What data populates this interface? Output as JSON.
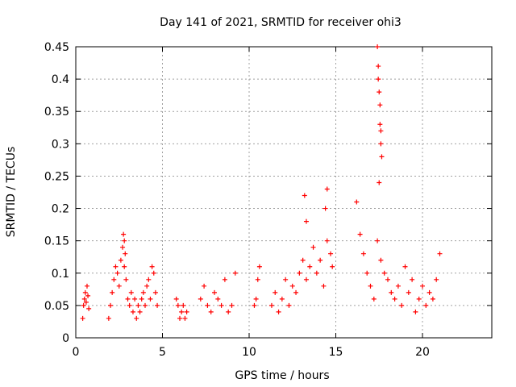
{
  "chart_data": {
    "type": "scatter",
    "title": "Day 141 of 2021, SRMTID for receiver ohi3",
    "xlabel": "GPS time / hours",
    "ylabel": "SRMTID / TECUs",
    "xlim": [
      0,
      24
    ],
    "ylim": [
      0,
      0.45
    ],
    "xticks": [
      0,
      5,
      10,
      15,
      20
    ],
    "yticks": [
      0,
      0.05,
      0.1,
      0.15,
      0.2,
      0.25,
      0.3,
      0.35,
      0.4,
      0.45
    ],
    "xtick_labels": [
      "0",
      "5",
      "10",
      "15",
      "20"
    ],
    "ytick_labels": [
      "0",
      "0.05",
      "0.1",
      "0.15",
      "0.2",
      "0.25",
      "0.3",
      "0.35",
      "0.4",
      "0.45"
    ],
    "grid": true,
    "marker": "+",
    "series_color": "#ff0000",
    "series": [
      {
        "name": "SRMTID",
        "x": [
          0.4,
          0.45,
          0.5,
          0.55,
          0.6,
          0.65,
          0.7,
          0.75,
          1.9,
          2.0,
          2.1,
          2.2,
          2.3,
          2.4,
          2.5,
          2.6,
          2.7,
          2.8,
          2.9,
          3.0,
          3.1,
          3.2,
          3.3,
          3.4,
          3.5,
          3.6,
          3.7,
          3.8,
          3.9,
          4.0,
          4.1,
          4.2,
          4.3,
          4.4,
          4.5,
          4.6,
          4.7,
          2.75,
          2.8,
          2.85,
          5.8,
          5.9,
          6.0,
          6.1,
          6.2,
          6.3,
          6.4,
          7.2,
          7.4,
          7.6,
          7.8,
          8.0,
          8.2,
          8.4,
          8.6,
          8.8,
          9.0,
          9.2,
          10.3,
          10.4,
          10.5,
          10.6,
          11.3,
          11.5,
          11.7,
          11.9,
          12.1,
          12.3,
          12.5,
          12.7,
          12.9,
          13.1,
          13.3,
          13.5,
          13.7,
          13.9,
          14.1,
          14.3,
          14.5,
          14.7,
          14.8,
          13.2,
          13.3,
          14.4,
          14.5,
          16.2,
          16.4,
          16.6,
          16.8,
          17.0,
          17.2,
          17.4,
          17.6,
          17.8,
          18.0,
          18.2,
          18.4,
          18.6,
          18.8,
          19.0,
          19.2,
          19.4,
          19.6,
          19.8,
          20.0,
          20.2,
          20.4,
          20.6,
          20.8,
          21.0,
          17.4,
          17.45,
          17.5,
          17.55,
          17.6,
          17.65,
          17.5,
          17.55,
          17.45,
          17.6
        ],
        "y": [
          0.03,
          0.05,
          0.06,
          0.07,
          0.055,
          0.08,
          0.065,
          0.045,
          0.03,
          0.05,
          0.07,
          0.09,
          0.11,
          0.1,
          0.08,
          0.12,
          0.14,
          0.11,
          0.09,
          0.06,
          0.05,
          0.07,
          0.04,
          0.06,
          0.03,
          0.05,
          0.04,
          0.06,
          0.07,
          0.05,
          0.08,
          0.09,
          0.06,
          0.11,
          0.1,
          0.07,
          0.05,
          0.16,
          0.15,
          0.13,
          0.06,
          0.05,
          0.03,
          0.04,
          0.05,
          0.03,
          0.04,
          0.06,
          0.08,
          0.05,
          0.04,
          0.07,
          0.06,
          0.05,
          0.09,
          0.04,
          0.05,
          0.1,
          0.05,
          0.06,
          0.09,
          0.11,
          0.05,
          0.07,
          0.04,
          0.06,
          0.09,
          0.05,
          0.08,
          0.07,
          0.1,
          0.12,
          0.09,
          0.11,
          0.14,
          0.1,
          0.12,
          0.08,
          0.15,
          0.13,
          0.11,
          0.22,
          0.18,
          0.2,
          0.23,
          0.21,
          0.16,
          0.13,
          0.1,
          0.08,
          0.06,
          0.15,
          0.12,
          0.1,
          0.09,
          0.07,
          0.06,
          0.08,
          0.05,
          0.11,
          0.07,
          0.09,
          0.04,
          0.06,
          0.08,
          0.05,
          0.07,
          0.06,
          0.09,
          0.13,
          0.45,
          0.4,
          0.38,
          0.33,
          0.3,
          0.28,
          0.24,
          0.36,
          0.42,
          0.32
        ]
      }
    ]
  }
}
